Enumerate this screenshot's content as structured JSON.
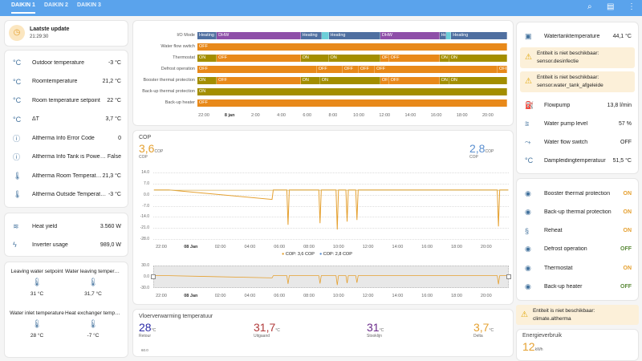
{
  "header": {
    "tabs": [
      "DAIKIN 1",
      "DAIKIN 2",
      "DAIKIN 3"
    ],
    "icons": [
      "search-icon",
      "chat-icon",
      "more-vert-icon"
    ]
  },
  "last_update": {
    "title": "Laatste update",
    "time": "21:29:30"
  },
  "sensors": [
    {
      "icon": "temperature-celsius-icon",
      "label": "Outdoor temperature",
      "value": "-3 °C"
    },
    {
      "icon": "temperature-celsius-icon",
      "label": "Roomtemperature",
      "value": "21,2 °C"
    },
    {
      "icon": "temperature-celsius-icon",
      "label": "Room temperature setpoint",
      "value": "22 °C"
    },
    {
      "icon": "temperature-celsius-icon",
      "label": "ΔT",
      "value": "3,7 °C"
    },
    {
      "icon": "info-icon",
      "label": "Altherma Info Error Code",
      "value": "0"
    },
    {
      "icon": "info-icon",
      "label": "Altherma Info Tank is Powerful",
      "value": "False"
    },
    {
      "icon": "thermometer-icon",
      "label": "Altherma Room Temperature",
      "value": "21,3 °C"
    },
    {
      "icon": "thermometer-icon",
      "label": "Altherma Outside Temperature",
      "value": "-3 °C"
    }
  ],
  "energy": [
    {
      "icon": "heat-coil-icon",
      "label": "Heat yield",
      "value": "3.560 W"
    },
    {
      "icon": "flash-icon",
      "label": "Inverter usage",
      "value": "989,0 W"
    }
  ],
  "glance": [
    {
      "label": "Leaving water setpoint",
      "value": "31 °C"
    },
    {
      "label": "Water leaving temperature",
      "value": "31,7 °C"
    },
    {
      "label": "Water inlet temperature",
      "value": "28 °C"
    },
    {
      "label": "Heat exchanger temperature",
      "value": "-7 °C"
    }
  ],
  "timeline": {
    "colors": {
      "Heating": "#4f6fa0",
      "DHW": "#8e4fa8",
      "other": "#6ccfd8",
      "ON": "#a38e00",
      "OFF": "#e8891a"
    },
    "rows": [
      {
        "label": "I/O Mode",
        "segments": [
          [
            "21:30",
            "23:00",
            "Heating"
          ],
          [
            "23:00",
            "05:30",
            "DHW"
          ],
          [
            "05:30",
            "07:10",
            "Heating"
          ],
          [
            "07:10",
            "07:40",
            ""
          ],
          [
            "07:40",
            "11:40",
            "Heating"
          ],
          [
            "11:40",
            "16:15",
            "DHW"
          ],
          [
            "16:15",
            "16:45",
            "Heating"
          ],
          [
            "16:45",
            "17:10",
            ""
          ],
          [
            "17:10",
            "21:30",
            "Heating"
          ]
        ]
      },
      {
        "label": "Water flow switch",
        "segments": [
          [
            "21:30",
            "21:30",
            "OFF"
          ]
        ]
      },
      {
        "label": "Thermostat",
        "segments": [
          [
            "21:30",
            "23:00",
            "ON"
          ],
          [
            "23:00",
            "05:30",
            "OFF"
          ],
          [
            "05:30",
            "07:40",
            "ON"
          ],
          [
            "07:40",
            "11:40",
            "ON"
          ],
          [
            "11:40",
            "12:20",
            "OFF"
          ],
          [
            "12:20",
            "16:15",
            "OFF"
          ],
          [
            "16:15",
            "17:00",
            "ON"
          ],
          [
            "17:00",
            "21:30",
            "ON"
          ]
        ]
      },
      {
        "label": "Defrost operation",
        "segments": [
          [
            "21:30",
            "06:45",
            "OFF"
          ],
          [
            "06:45",
            "08:45",
            "OFF"
          ],
          [
            "08:45",
            "10:00",
            "OFF"
          ],
          [
            "10:00",
            "11:15",
            "OFF"
          ],
          [
            "11:15",
            "20:45",
            "OFF"
          ],
          [
            "20:45",
            "21:30",
            "OFF"
          ]
        ]
      },
      {
        "label": "Booster thermal protection",
        "segments": [
          [
            "21:30",
            "23:00",
            "ON"
          ],
          [
            "23:00",
            "05:30",
            "OFF"
          ],
          [
            "05:30",
            "07:00",
            "ON"
          ],
          [
            "07:00",
            "11:40",
            "ON"
          ],
          [
            "11:40",
            "12:20",
            "OFF"
          ],
          [
            "12:20",
            "16:15",
            "OFF"
          ],
          [
            "16:15",
            "17:00",
            "ON"
          ],
          [
            "17:00",
            "21:30",
            "ON"
          ]
        ]
      },
      {
        "label": "Back-up thermal protection",
        "segments": [
          [
            "21:30",
            "21:30",
            "ON"
          ]
        ]
      },
      {
        "label": "Back-up heater",
        "segments": [
          [
            "21:30",
            "21:30",
            "OFF"
          ]
        ]
      }
    ],
    "ticks": [
      "22:00",
      "8 jan",
      "2:00",
      "4:00",
      "6:00",
      "8:00",
      "10:00",
      "12:00",
      "14:00",
      "16:00",
      "18:00",
      "20:00"
    ]
  },
  "cop": {
    "title": "COP",
    "value1": "3,6",
    "unit1": "COP",
    "sub1": "COP",
    "color1": "#e5a02f",
    "value2": "2,8",
    "unit2": "COP",
    "sub2": "COP",
    "color2": "#5a8fd0",
    "legend": [
      "COP: 3,6 COP",
      "COP: 2,8 COP"
    ],
    "yticks": [
      "14.0",
      "7.0",
      "0.0",
      "-7.0",
      "-14.0",
      "-21.0",
      "-28.0"
    ],
    "nav_yticks": [
      "30.0",
      "0.0",
      "-30.0"
    ],
    "xticks": [
      "22:00",
      "08 Jan",
      "02:00",
      "04:00",
      "06:00",
      "08:00",
      "10:00",
      "12:00",
      "14:00",
      "16:00",
      "18:00",
      "20:00"
    ]
  },
  "chart_data": {
    "type": "line",
    "ylim": [
      -28,
      14
    ],
    "series": [
      {
        "name": "COP",
        "x": [
          "21:30",
          "22:30",
          "05:30",
          "05:35",
          "06:30",
          "06:35",
          "06:40",
          "08:40",
          "08:45",
          "08:50",
          "09:50",
          "09:55",
          "10:00",
          "10:30",
          "10:35",
          "10:40",
          "11:10",
          "11:15",
          "11:20",
          "20:45",
          "20:50",
          "20:55",
          "21:30"
        ],
        "y": [
          3,
          3,
          -3,
          3,
          3,
          -19,
          3,
          3,
          -18,
          3,
          3,
          -22,
          3,
          3,
          -17,
          3,
          3,
          -16,
          3,
          3,
          -20,
          3,
          3
        ]
      }
    ]
  },
  "floor": {
    "title": "Vloerverwarming temperatuur",
    "stats": [
      {
        "value": "28",
        "unit": "°C",
        "label": "Retour",
        "color": "#2a2aa8"
      },
      {
        "value": "31,7",
        "unit": "°C",
        "label": "Uitgaand",
        "color": "#b03a3a"
      },
      {
        "value": "31",
        "unit": "°C",
        "label": "Stooklijn",
        "color": "#6a2a8a"
      },
      {
        "value": "3,7",
        "unit": "°C",
        "label": "Delta",
        "color": "#e5a02f"
      }
    ],
    "ytick": "60.0"
  },
  "tank": {
    "rows": [
      {
        "icon": "water-boiler-icon",
        "label": "Watertanktemperature",
        "value": "44,1 °C"
      },
      {
        "icon": "pump-icon",
        "label": "Flowpump",
        "value": "13,8 l/min"
      },
      {
        "icon": "water-level-icon",
        "label": "Water pump level",
        "value": "57 %"
      },
      {
        "icon": "switch-icon",
        "label": "Water flow switch",
        "value": "OFF"
      },
      {
        "icon": "temperature-celsius-icon",
        "label": "Dampleidingtemperatuur",
        "value": "51,5 °C"
      }
    ],
    "warnings": [
      "Entiteit is niet beschikbaar:\nsensor.desinfectie",
      "Entiteit is niet beschikbaar:\nsensor.water_tank_afgeleide"
    ]
  },
  "binary": [
    {
      "icon": "eye-icon",
      "label": "Booster thermal protection",
      "value": "ON",
      "color": "#e5a02f"
    },
    {
      "icon": "eye-icon",
      "label": "Back-up thermal protection",
      "value": "ON",
      "color": "#e5a02f"
    },
    {
      "icon": "heat-waves-icon",
      "label": "Reheat",
      "value": "ON",
      "color": "#e5a02f"
    },
    {
      "icon": "eye-icon",
      "label": "Defrost operation",
      "value": "OFF",
      "color": "#5b8a3a"
    },
    {
      "icon": "eye-icon",
      "label": "Thermostat",
      "value": "ON",
      "color": "#e5a02f"
    },
    {
      "icon": "eye-icon",
      "label": "Back-up heater",
      "value": "OFF",
      "color": "#5b8a3a"
    }
  ],
  "climate_warning": "Entiteit is niet beschikbaar:\nclimate.altherma",
  "energy_usage": {
    "title": "Energieverbruik",
    "value": "12",
    "unit": "kWh",
    "color": "#e5a02f"
  }
}
